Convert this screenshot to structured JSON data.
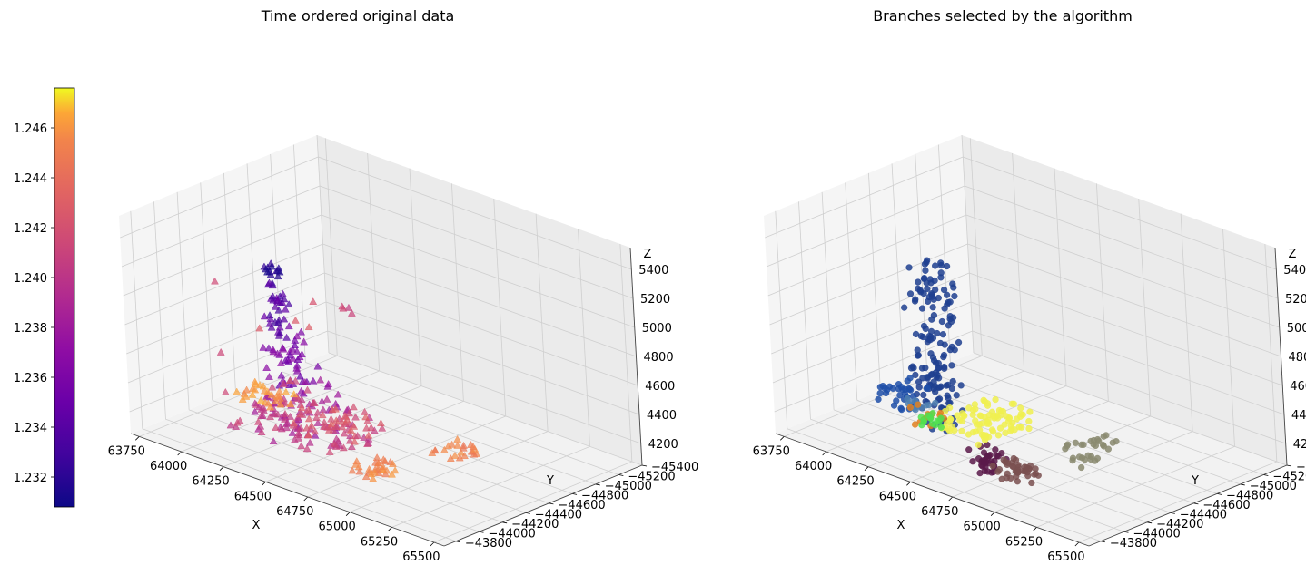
{
  "chart_data": [
    {
      "type": "scatter",
      "projection": "3d",
      "title": "Time ordered original data",
      "xlabel": "X",
      "ylabel": "Y",
      "zlabel": "Z",
      "xticks": [
        "63750",
        "64000",
        "64250",
        "64500",
        "64750",
        "65000",
        "65250",
        "65500"
      ],
      "yticks": [
        "−43800",
        "−44000",
        "−44200",
        "−44400",
        "−44600",
        "−44800",
        "−45000",
        "−45200",
        "−45400"
      ],
      "zticks": [
        "4200",
        "4400",
        "4600",
        "4800",
        "5000",
        "5200",
        "5400"
      ],
      "xlim": [
        63700,
        65560
      ],
      "ylim": [
        -45400,
        -43700
      ],
      "zlim": [
        4050,
        5550
      ],
      "marker": "triangle",
      "colormap": "plasma",
      "colorbar": {
        "ticks": [
          "1.232",
          "1.234",
          "1.236",
          "1.238",
          "1.240",
          "1.242",
          "1.244",
          "1.246"
        ],
        "range": [
          1.2308,
          1.2476
        ]
      },
      "grid": true,
      "series": [
        {
          "x_range": [
            64400,
            64470
          ],
          "y_range": [
            -44000,
            -43880
          ],
          "z_range": [
            5300,
            5450
          ],
          "n": 14,
          "value_range": [
            1.231,
            1.2325
          ]
        },
        {
          "x_range": [
            64380,
            64500
          ],
          "y_range": [
            -44050,
            -43900
          ],
          "z_range": [
            4950,
            5300
          ],
          "n": 32,
          "value_range": [
            1.2325,
            1.2345
          ]
        },
        {
          "x_range": [
            64380,
            64540
          ],
          "y_range": [
            -44150,
            -43880
          ],
          "z_range": [
            4550,
            4950
          ],
          "n": 45,
          "value_range": [
            1.2345,
            1.2365
          ]
        },
        {
          "x_range": [
            64280,
            64650
          ],
          "y_range": [
            -44300,
            -43800
          ],
          "z_range": [
            4250,
            4550
          ],
          "n": 45,
          "value_range": [
            1.2365,
            1.2385
          ]
        },
        {
          "x_range": [
            64000,
            64650
          ],
          "y_range": [
            -44600,
            -44050
          ],
          "z_range": [
            4100,
            4250
          ],
          "n": 90,
          "value_range": [
            1.2385,
            1.2405
          ]
        },
        {
          "x_range": [
            64200,
            64550
          ],
          "y_range": [
            -44700,
            -44250
          ],
          "z_range": [
            4100,
            4200
          ],
          "n": 40,
          "value_range": [
            1.24,
            1.242
          ]
        },
        {
          "x_range": [
            63820,
            64050
          ],
          "y_range": [
            -44650,
            -44350
          ],
          "z_range": [
            4100,
            4200
          ],
          "n": 28,
          "value_range": [
            1.244,
            1.246
          ]
        },
        {
          "x_range": [
            64850,
            65050
          ],
          "y_range": [
            -44800,
            -44600
          ],
          "z_range": [
            4100,
            4150
          ],
          "n": 22,
          "value_range": [
            1.243,
            1.2445
          ]
        },
        {
          "x_range": [
            64750,
            64950
          ],
          "y_range": [
            -44220,
            -44020
          ],
          "z_range": [
            4120,
            4200
          ],
          "n": 30,
          "value_range": [
            1.243,
            1.245
          ]
        },
        {
          "x_range": [
            64950,
            65050
          ],
          "y_range": [
            -43850,
            -43750
          ],
          "z_range": [
            5350,
            5450
          ],
          "n": 4,
          "value_range": [
            1.2395,
            1.2405
          ]
        },
        {
          "x_range": [
            63800,
            64400
          ],
          "y_range": [
            -44500,
            -44000
          ],
          "z_range": [
            4300,
            5000
          ],
          "n": 10,
          "value_range": [
            1.2395,
            1.242
          ]
        }
      ]
    },
    {
      "type": "scatter",
      "projection": "3d",
      "title": "Branches selected by the algorithm",
      "xlabel": "X",
      "ylabel": "Y",
      "zlabel": "Z",
      "xticks": [
        "63750",
        "64000",
        "64250",
        "64500",
        "64750",
        "65000",
        "65250",
        "65500"
      ],
      "yticks": [
        "−43800",
        "−44000",
        "−44200",
        "−44400",
        "−44600",
        "−44800",
        "−45000",
        "−45200",
        "−45400"
      ],
      "zticks": [
        "4200",
        "4400",
        "4600",
        "4800",
        "5000",
        "5200",
        "5400"
      ],
      "xlim": [
        63700,
        65560
      ],
      "ylim": [
        -45400,
        -43700
      ],
      "zlim": [
        4050,
        5550
      ],
      "marker": "circle",
      "grid": true,
      "series": [
        {
          "color": "#1f3f8f",
          "x_range": [
            64380,
            64540
          ],
          "y_range": [
            -44150,
            -43880
          ],
          "z_range": [
            4300,
            5450
          ],
          "n": 150
        },
        {
          "color": "#5a1a4a",
          "x_range": [
            64650,
            64800
          ],
          "y_range": [
            -44150,
            -43950
          ],
          "z_range": [
            4120,
            4250
          ],
          "n": 35
        },
        {
          "color": "#7a5050",
          "x_range": [
            64780,
            64950
          ],
          "y_range": [
            -44200,
            -44000
          ],
          "z_range": [
            4100,
            4200
          ],
          "n": 40
        },
        {
          "color": "#8a8a70",
          "x_range": [
            64850,
            65050
          ],
          "y_range": [
            -44800,
            -44450
          ],
          "z_range": [
            4100,
            4200
          ],
          "n": 30
        },
        {
          "color": "#f0f050",
          "x_range": [
            64250,
            64550
          ],
          "y_range": [
            -44700,
            -44300
          ],
          "z_range": [
            4100,
            4250
          ],
          "n": 90
        },
        {
          "color": "#1f4fa8",
          "x_range": [
            63820,
            64000
          ],
          "y_range": [
            -44650,
            -44350
          ],
          "z_range": [
            4100,
            4250
          ],
          "n": 35
        },
        {
          "color": "#5080b0",
          "x_range": [
            63950,
            64100
          ],
          "y_range": [
            -44550,
            -44400
          ],
          "z_range": [
            4100,
            4180
          ],
          "n": 12
        },
        {
          "color": "#e08020",
          "x_range": [
            64200,
            64350
          ],
          "y_range": [
            -44250,
            -44100
          ],
          "z_range": [
            4200,
            4300
          ],
          "n": 14
        },
        {
          "color": "#50e050",
          "x_range": [
            64350,
            64450
          ],
          "y_range": [
            -44100,
            -44000
          ],
          "z_range": [
            4280,
            4350
          ],
          "n": 14
        }
      ]
    }
  ]
}
